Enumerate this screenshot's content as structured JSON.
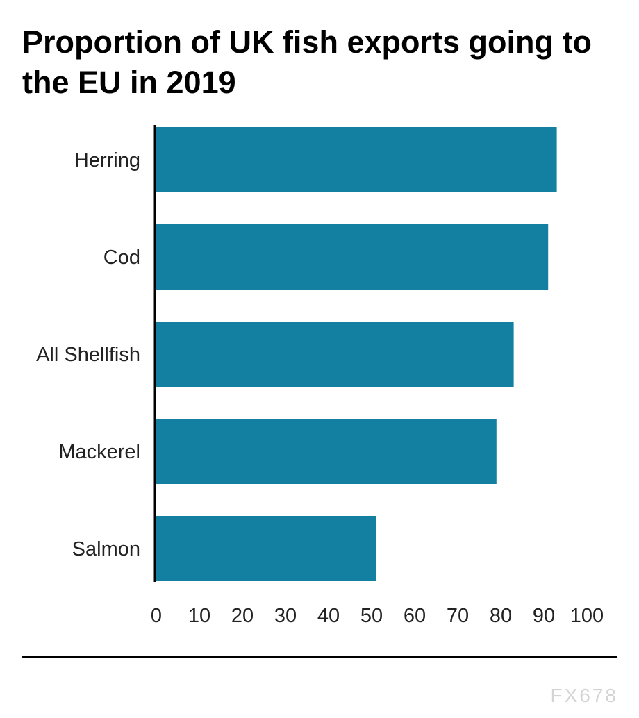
{
  "chart_data": {
    "type": "bar",
    "orientation": "horizontal",
    "title": "Proportion of UK fish exports going to the EU in 2019",
    "categories": [
      "Herring",
      "Cod",
      "All Shellfish",
      "Mackerel",
      "Salmon"
    ],
    "values": [
      93,
      91,
      83,
      79,
      51
    ],
    "xlim": [
      0,
      100
    ],
    "xticks": [
      "0",
      "10",
      "20",
      "30",
      "40",
      "50",
      "60",
      "70",
      "80",
      "90",
      "100"
    ],
    "grid": false,
    "colors": {
      "bar": "#1380a1"
    }
  },
  "watermark": "FX678"
}
